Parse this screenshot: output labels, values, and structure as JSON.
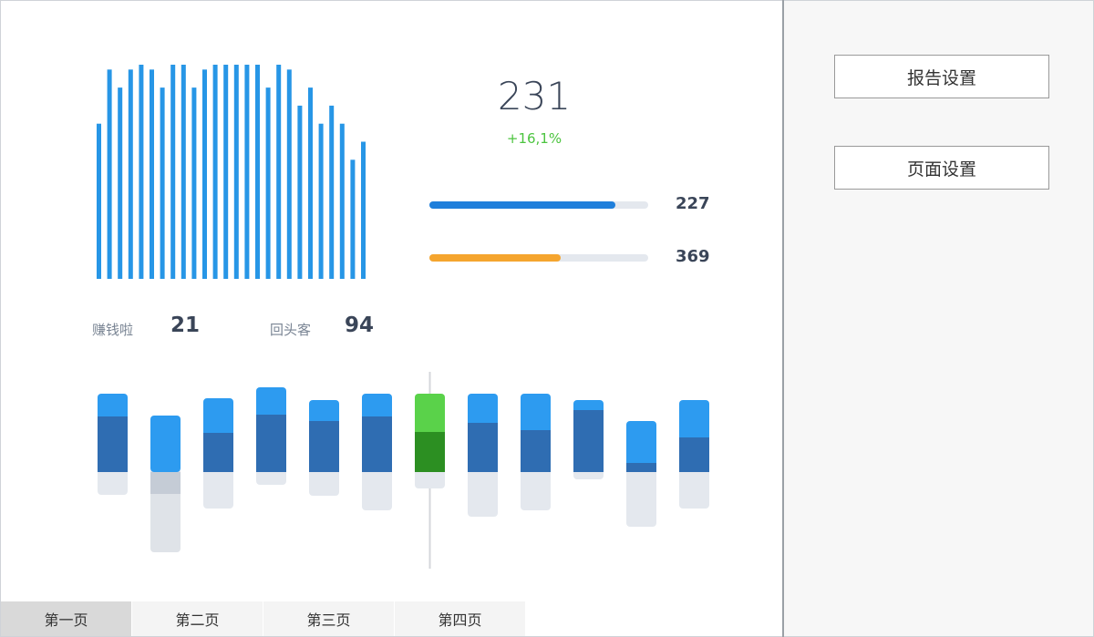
{
  "sidebar": {
    "report_settings_label": "报告设置",
    "page_settings_label": "页面设置"
  },
  "kpi": {
    "value": "231",
    "delta": "+16,1%"
  },
  "progress": [
    {
      "value_label": "227",
      "fraction": 0.85,
      "color": "#1f7fdb"
    },
    {
      "value_label": "369",
      "fraction": 0.6,
      "color": "#f5a52e"
    }
  ],
  "stats": [
    {
      "label": "赚钱啦",
      "value": "21"
    },
    {
      "label": "回头客",
      "value": "94"
    }
  ],
  "tabs": [
    {
      "label": "第一页",
      "active": true
    },
    {
      "label": "第二页",
      "active": false
    },
    {
      "label": "第三页",
      "active": false
    },
    {
      "label": "第四页",
      "active": false
    }
  ],
  "chart_data": [
    {
      "type": "bar",
      "color": "#2796e6",
      "values": [
        46,
        76,
        66,
        76,
        86,
        76,
        66,
        86,
        96,
        66,
        76,
        86,
        116,
        96,
        86,
        96,
        66,
        86,
        76,
        56,
        66,
        46,
        56,
        46,
        26,
        36
      ],
      "ylim": [
        -40,
        116
      ],
      "grid": false
    },
    {
      "type": "bar",
      "colors": {
        "top": "#2d9bf0",
        "body": "#2f6db2",
        "below": "#e4e8ee",
        "highlight_top": "#5ad24a",
        "highlight_body": "#2c8f22"
      },
      "highlight_index": 6,
      "values": [
        {
          "top": 86,
          "mid": 61,
          "bottom": -25
        },
        {
          "top": 62,
          "mid": 0,
          "bottom": -88
        },
        {
          "top": 81,
          "mid": 43,
          "bottom": -40
        },
        {
          "top": 93,
          "mid": 63,
          "bottom": -14
        },
        {
          "top": 79,
          "mid": 56,
          "bottom": -26
        },
        {
          "top": 86,
          "mid": 61,
          "bottom": -42
        },
        {
          "top": 86,
          "mid": 44,
          "bottom": -18
        },
        {
          "top": 86,
          "mid": 54,
          "bottom": -49
        },
        {
          "top": 86,
          "mid": 46,
          "bottom": -42
        },
        {
          "top": 79,
          "mid": 68,
          "bottom": -8
        },
        {
          "top": 56,
          "mid": 10,
          "bottom": -60
        },
        {
          "top": 79,
          "mid": 38,
          "bottom": -40
        }
      ],
      "grid": false
    }
  ]
}
